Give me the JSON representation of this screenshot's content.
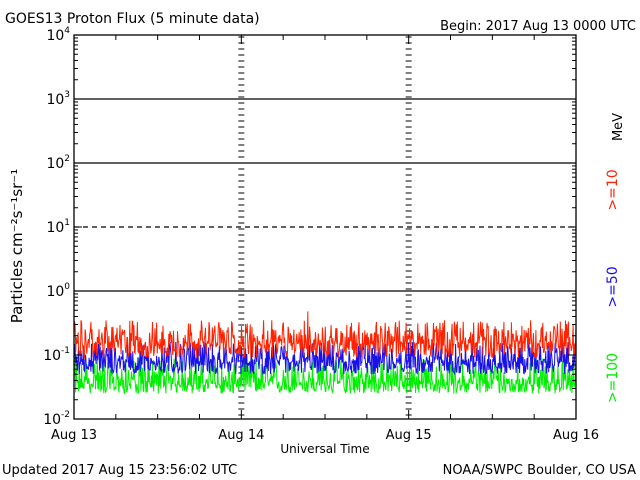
{
  "header": {
    "title": "GOES13 Proton Flux (5 minute data)",
    "begin": "Begin: 2017 Aug 13 0000 UTC"
  },
  "footer": {
    "updated": "Updated 2017 Aug 15 23:56:02 UTC",
    "credit": "NOAA/SWPC Boulder, CO USA"
  },
  "chart_data": {
    "type": "line",
    "title": "GOES13 Proton Flux (5 minute data)",
    "xlabel": "Universal Time",
    "ylabel": "Particles cm⁻²s⁻¹sr⁻¹",
    "yscale": "log",
    "ylim": [
      0.01,
      10000
    ],
    "xlim": [
      "2017-08-13",
      "2017-08-16"
    ],
    "x_ticks": [
      "Aug 13",
      "Aug 14",
      "Aug 15",
      "Aug 16"
    ],
    "y_ticks": [
      {
        "base": "10",
        "exp": "-2"
      },
      {
        "base": "10",
        "exp": "-1"
      },
      {
        "base": "10",
        "exp": "0"
      },
      {
        "base": "10",
        "exp": "1"
      },
      {
        "base": "10",
        "exp": "2"
      },
      {
        "base": "10",
        "exp": "3"
      },
      {
        "base": "10",
        "exp": "4"
      }
    ],
    "threshold_lines": [
      {
        "value": 1,
        "style": "solid"
      },
      {
        "value": 10,
        "style": "dashed"
      },
      {
        "value": 100,
        "style": "solid"
      },
      {
        "value": 1000,
        "style": "solid"
      }
    ],
    "unit_label": "MeV",
    "series": [
      {
        "name": ">=10",
        "color": "#ff2200",
        "baseline": 0.15,
        "range": [
          0.09,
          0.35
        ],
        "peak": 0.48
      },
      {
        "name": ">=50",
        "color": "#1a10e8",
        "baseline": 0.075,
        "range": [
          0.05,
          0.16
        ]
      },
      {
        "name": ">=100",
        "color": "#00ee00",
        "baseline": 0.035,
        "range": [
          0.025,
          0.09
        ]
      }
    ],
    "grid": false,
    "legend": "right-vertical"
  }
}
